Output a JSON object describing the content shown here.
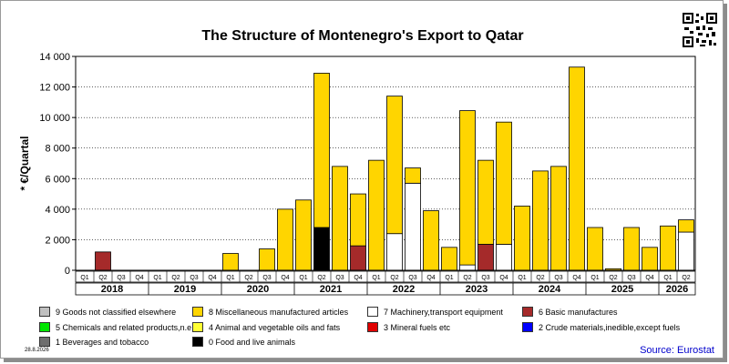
{
  "chart_data": {
    "type": "bar",
    "stacked": true,
    "title": "The Structure of Montenegro's Export to Qatar",
    "ylabel": "* €/Quartal",
    "ylim": [
      0,
      14000
    ],
    "yticks": [
      0,
      2000,
      4000,
      6000,
      8000,
      10000,
      12000,
      14000
    ],
    "ytick_labels": [
      "0",
      "2 000",
      "4 000",
      "6 000",
      "8 000",
      "10 000",
      "12 000",
      "14 000"
    ],
    "categories": [
      "Q1",
      "Q2",
      "Q3",
      "Q4",
      "Q1",
      "Q2",
      "Q3",
      "Q4",
      "Q1",
      "Q2",
      "Q3",
      "Q4",
      "Q1",
      "Q2",
      "Q3",
      "Q4",
      "Q1",
      "Q2",
      "Q3",
      "Q4",
      "Q1",
      "Q2",
      "Q3",
      "Q4",
      "Q1",
      "Q2",
      "Q3",
      "Q4",
      "Q1",
      "Q2",
      "Q3",
      "Q4",
      "Q1",
      "Q2"
    ],
    "years": [
      {
        "label": "2018",
        "quarters": 4
      },
      {
        "label": "2019",
        "quarters": 4
      },
      {
        "label": "2020",
        "quarters": 4
      },
      {
        "label": "2021",
        "quarters": 4
      },
      {
        "label": "2022",
        "quarters": 4
      },
      {
        "label": "2023",
        "quarters": 4
      },
      {
        "label": "2024",
        "quarters": 4
      },
      {
        "label": "2025",
        "quarters": 4
      },
      {
        "label": "2026",
        "quarters": 2
      }
    ],
    "series": [
      {
        "name": "0 Food and live animals",
        "color": "#000000",
        "values": [
          0,
          0,
          0,
          0,
          0,
          0,
          0,
          0,
          0,
          0,
          0,
          0,
          0,
          2800,
          0,
          0,
          0,
          0,
          0,
          0,
          0,
          0,
          0,
          0,
          0,
          0,
          0,
          0,
          0,
          0,
          0,
          0,
          0,
          0
        ]
      },
      {
        "name": "6 Basic manufactures",
        "color": "#a52a2a",
        "values": [
          0,
          1200,
          0,
          0,
          0,
          0,
          0,
          0,
          0,
          0,
          0,
          0,
          0,
          0,
          0,
          1600,
          0,
          0,
          0,
          0,
          0,
          0,
          1700,
          0,
          0,
          0,
          0,
          0,
          0,
          0,
          0,
          0,
          0,
          0
        ]
      },
      {
        "name": "7 Machinery,transport equipment",
        "color": "#ffffff",
        "values": [
          0,
          0,
          0,
          0,
          0,
          0,
          0,
          0,
          0,
          0,
          0,
          0,
          0,
          0,
          0,
          0,
          0,
          2400,
          5700,
          0,
          0,
          350,
          0,
          1700,
          0,
          0,
          0,
          0,
          0,
          0,
          0,
          0,
          0,
          2500
        ]
      },
      {
        "name": "8 Miscellaneous manufactured articles",
        "color": "#ffd500",
        "values": [
          0,
          0,
          0,
          0,
          0,
          0,
          0,
          0,
          1100,
          0,
          1400,
          4000,
          4600,
          10100,
          6800,
          3400,
          7200,
          9000,
          1000,
          3900,
          1500,
          10100,
          5500,
          8000,
          4200,
          6500,
          6800,
          13300,
          2800,
          100,
          2800,
          1500,
          2900,
          800
        ]
      },
      {
        "name": "9 Goods not classified elsewhere",
        "color": "#c0c0c0",
        "values": [
          0,
          0,
          0,
          0,
          0,
          0,
          0,
          0,
          0,
          0,
          0,
          0,
          0,
          0,
          0,
          0,
          0,
          0,
          0,
          0,
          0,
          0,
          0,
          0,
          0,
          0,
          0,
          0,
          0,
          0,
          0,
          0,
          0,
          0
        ]
      }
    ],
    "legend": [
      {
        "name": "9 Goods not classified elsewhere",
        "color": "#c0c0c0"
      },
      {
        "name": "8 Miscellaneous manufactured articles",
        "color": "#ffd500"
      },
      {
        "name": "7 Machinery,transport equipment",
        "color": "#ffffff"
      },
      {
        "name": "6 Basic manufactures",
        "color": "#a52a2a"
      },
      {
        "name": "5 Chemicals and related products,n.e.s.",
        "color": "#00e600"
      },
      {
        "name": "4 Animal and vegetable oils and fats",
        "color": "#ffff33"
      },
      {
        "name": "3 Mineral fuels etc",
        "color": "#e00000"
      },
      {
        "name": "2 Crude materials,inedible,except fuels",
        "color": "#0000ff"
      },
      {
        "name": "1 Beverages and tobacco",
        "color": "#6e6e6e"
      },
      {
        "name": "0 Food and live animals",
        "color": "#000000"
      }
    ],
    "legend_placement": "bottom",
    "grid": {
      "horizontal": true,
      "vertical": false
    }
  },
  "date": "28.8.2026",
  "source": "Source: Eurostat"
}
